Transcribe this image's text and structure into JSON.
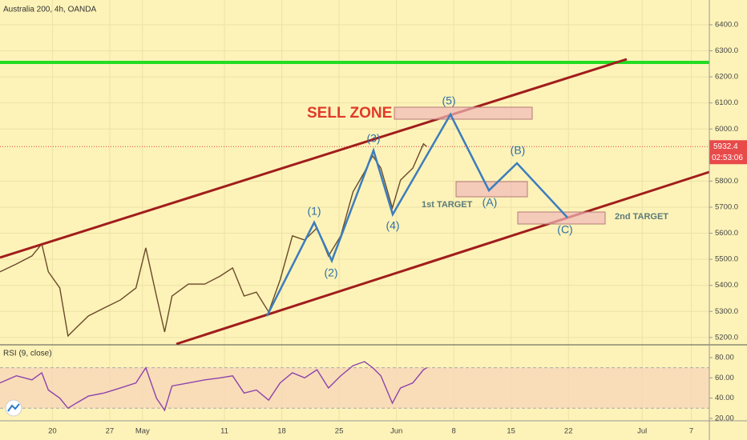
{
  "header": "Australia 200, 4h, OANDA",
  "chart_data": [
    {
      "type": "line",
      "title": "Australia 200, 4h, OANDA",
      "color": "#6b4a2a",
      "x": [
        104.6,
        106.6,
        108.5,
        109.7,
        110.5,
        111.9,
        112.9,
        113.9,
        115.4,
        117.3,
        119.3,
        121.2,
        122.4,
        123.7,
        124.7,
        125.6,
        127.6,
        129.6,
        131.5,
        133.0,
        134.4,
        135.9,
        137.4,
        138.8,
        140.3,
        141.8,
        143.3,
        144.7,
        146.2,
        147.7,
        149.1,
        150.1,
        151.1,
        152.5,
        153.5,
        155.0,
        156.3,
        156.7
      ],
      "values": [
        5452,
        5482,
        5513,
        5559,
        5452,
        5390,
        5206,
        5237,
        5283,
        5313,
        5344,
        5390,
        5544,
        5359,
        5221,
        5359,
        5405,
        5405,
        5436,
        5467,
        5359,
        5374,
        5298,
        5421,
        5590,
        5574,
        5620,
        5513,
        5590,
        5759,
        5835,
        5897,
        5850,
        5697,
        5804,
        5850,
        5943,
        5932.4
      ],
      "xlim": [
        104.6,
        191.2
      ],
      "ylim": [
        5175,
        6495
      ],
      "xticks": [
        {
          "value": 111,
          "label": "20"
        },
        {
          "value": 118,
          "label": "27"
        },
        {
          "value": 122,
          "label": "May"
        },
        {
          "value": 132,
          "label": "11"
        },
        {
          "value": 139,
          "label": "18"
        },
        {
          "value": 146,
          "label": "25"
        },
        {
          "value": 153,
          "label": "Jun"
        },
        {
          "value": 160,
          "label": "8"
        },
        {
          "value": 167,
          "label": "15"
        },
        {
          "value": 174,
          "label": "22"
        },
        {
          "value": 183,
          "label": "Jul"
        },
        {
          "value": 189,
          "label": "7"
        }
      ],
      "yticks": [
        {
          "value": 5200,
          "label": "5200.0"
        },
        {
          "value": 5300,
          "label": "5300.0"
        },
        {
          "value": 5400,
          "label": "5400.0"
        },
        {
          "value": 5500,
          "label": "5500.0"
        },
        {
          "value": 5600,
          "label": "5600.0"
        },
        {
          "value": 5700,
          "label": "5700.0"
        },
        {
          "value": 5800,
          "label": "5800.0"
        },
        {
          "value": 6000,
          "label": "6000.0"
        },
        {
          "value": 6100,
          "label": "6100.0"
        },
        {
          "value": 6200,
          "label": "6200.0"
        },
        {
          "value": 6300,
          "label": "6300.0"
        },
        {
          "value": 6400,
          "label": "6400.0"
        }
      ],
      "grid": true,
      "current_price": 5932.4,
      "countdown": "02:53:06",
      "annotations": {
        "sell_zone": "SELL ZONE",
        "target1": "1st TARGET",
        "target2": "2nd TARGET",
        "waves": [
          "(1)",
          "(2)",
          "(3)",
          "(4)",
          "(5)",
          "(A)",
          "(B)",
          "(C)"
        ]
      }
    },
    {
      "type": "line",
      "title": "RSI (9, close)",
      "color": "#8e44ad",
      "x": [
        104.6,
        106.6,
        108.5,
        109.7,
        110.5,
        111.9,
        112.9,
        113.9,
        115.4,
        117.3,
        119.3,
        121.2,
        122.4,
        123.7,
        124.7,
        125.6,
        127.6,
        129.6,
        131.5,
        133.0,
        134.4,
        135.9,
        137.4,
        138.8,
        140.3,
        141.8,
        143.3,
        144.7,
        146.2,
        147.7,
        149.1,
        150.1,
        151.1,
        152.5,
        153.5,
        155.0,
        156.3,
        156.7
      ],
      "values": [
        55,
        62,
        58,
        65,
        48,
        40,
        30,
        35,
        42,
        45,
        50,
        55,
        70,
        40,
        28,
        52,
        55,
        58,
        60,
        62,
        45,
        48,
        38,
        55,
        65,
        60,
        68,
        50,
        62,
        72,
        76,
        70,
        62,
        35,
        50,
        55,
        68,
        70
      ],
      "xlim": [
        104.6,
        191.2
      ],
      "ylim": [
        18.4,
        91.8
      ],
      "yticks": [
        {
          "value": 20,
          "label": "20.00"
        },
        {
          "value": 40,
          "label": "40.00"
        },
        {
          "value": 60,
          "label": "60.00"
        },
        {
          "value": 80,
          "label": "80.00"
        }
      ],
      "band": [
        30,
        70
      ]
    }
  ]
}
